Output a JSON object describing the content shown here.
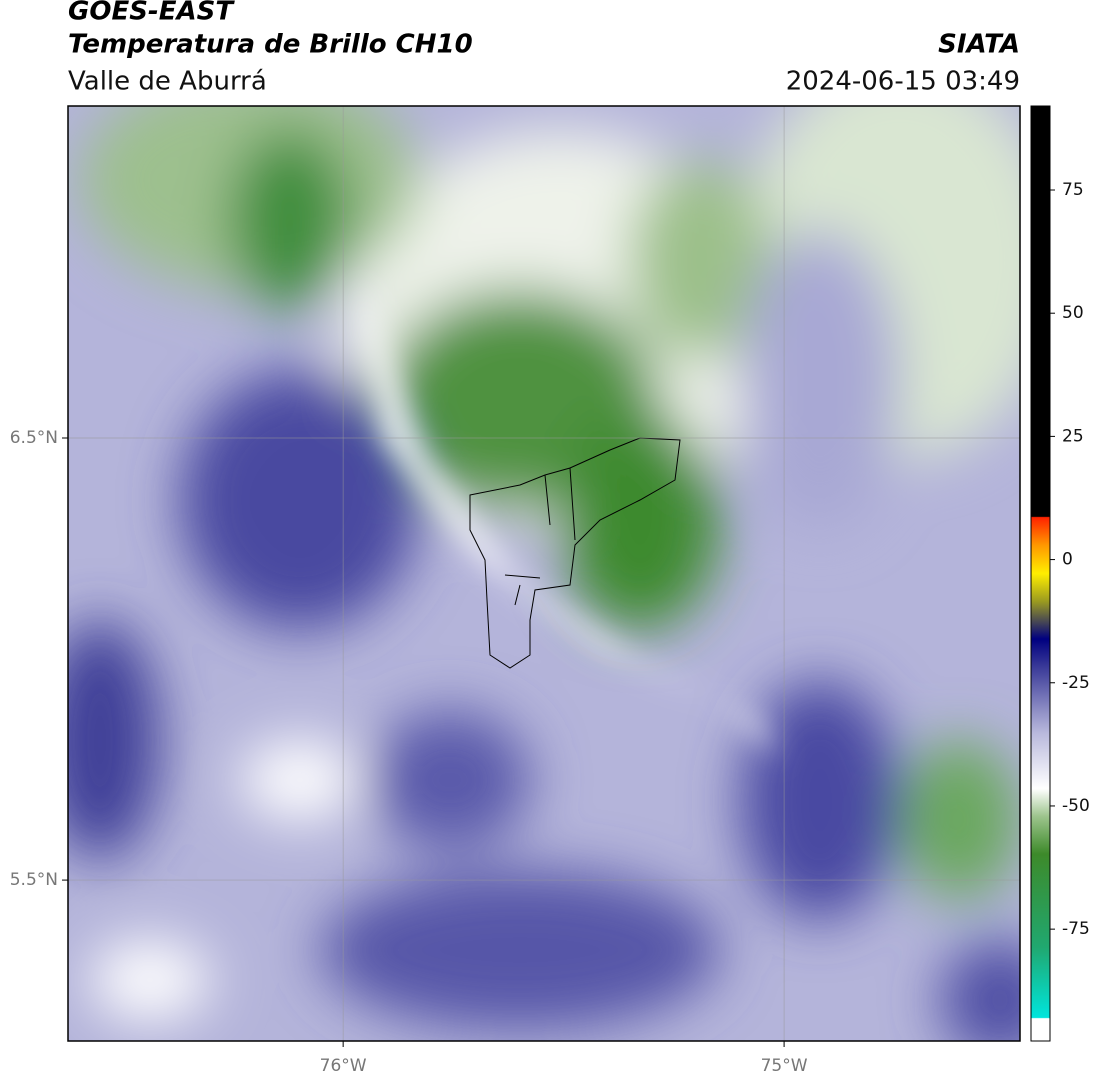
{
  "header": {
    "title": "GOES-EAST",
    "subtitle": "Temperatura de Brillo CH10",
    "region": "Valle de Aburrá",
    "source": "SIATA",
    "datetime": "2024-06-15 03:49"
  },
  "map": {
    "lonlim": [
      -76.624,
      -74.465
    ],
    "latlim": [
      5.136,
      7.251
    ],
    "lon_ticks": [
      {
        "value": -76,
        "label": "76°W"
      },
      {
        "value": -75,
        "label": "75°W"
      }
    ],
    "lat_ticks": [
      {
        "value": 6.5,
        "label": "6.5°N"
      },
      {
        "value": 5.5,
        "label": "5.5°N"
      }
    ]
  },
  "colorbar": {
    "lim": [
      -97.7,
      92.05
    ],
    "ticks": [
      75,
      50,
      25,
      0,
      -25,
      -50,
      -75
    ]
  }
}
